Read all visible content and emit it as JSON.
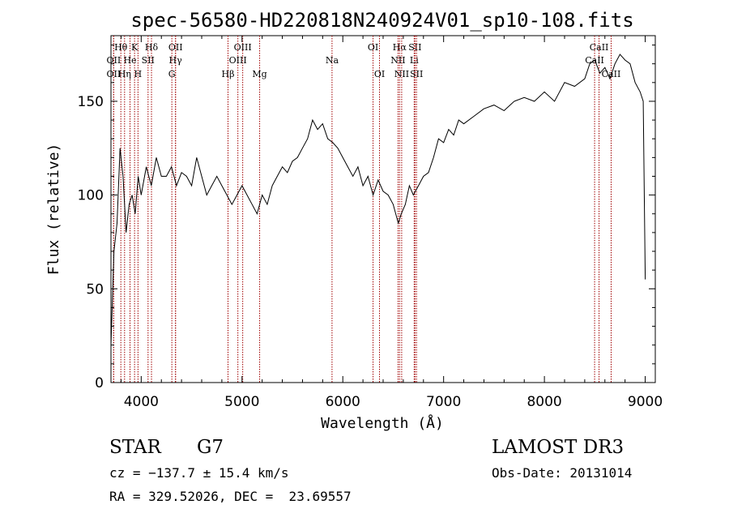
{
  "chart_data": {
    "type": "line",
    "title": "spec-56580-HD220818N240924V01_sp10-108.fits",
    "xlabel": "Wavelength (Å)",
    "ylabel": "Flux (relative)",
    "xlim": [
      3700,
      9100
    ],
    "ylim": [
      0,
      185
    ],
    "xticks": [
      4000,
      5000,
      6000,
      7000,
      8000,
      9000
    ],
    "yticks": [
      0,
      50,
      100,
      150
    ],
    "grid": false,
    "series": [
      {
        "name": "flux",
        "x": [
          3700,
          3730,
          3760,
          3790,
          3820,
          3850,
          3880,
          3910,
          3940,
          3970,
          4000,
          4050,
          4100,
          4150,
          4200,
          4250,
          4300,
          4350,
          4400,
          4450,
          4500,
          4550,
          4600,
          4650,
          4700,
          4750,
          4800,
          4850,
          4900,
          4950,
          5000,
          5050,
          5100,
          5150,
          5200,
          5250,
          5300,
          5350,
          5400,
          5450,
          5500,
          5550,
          5600,
          5650,
          5700,
          5750,
          5800,
          5850,
          5900,
          5950,
          6000,
          6050,
          6100,
          6150,
          6200,
          6250,
          6300,
          6350,
          6400,
          6450,
          6500,
          6550,
          6580,
          6620,
          6660,
          6700,
          6750,
          6800,
          6850,
          6900,
          6950,
          7000,
          7050,
          7100,
          7150,
          7200,
          7300,
          7400,
          7500,
          7600,
          7700,
          7800,
          7900,
          8000,
          8100,
          8200,
          8300,
          8400,
          8450,
          8500,
          8550,
          8600,
          8650,
          8700,
          8750,
          8800,
          8850,
          8900,
          8950,
          8980,
          9000
        ],
        "y": [
          20,
          70,
          85,
          125,
          110,
          80,
          95,
          100,
          90,
          110,
          100,
          115,
          105,
          120,
          110,
          110,
          115,
          105,
          112,
          110,
          105,
          120,
          110,
          100,
          105,
          110,
          105,
          100,
          95,
          100,
          105,
          100,
          95,
          90,
          100,
          95,
          105,
          110,
          115,
          112,
          118,
          120,
          125,
          130,
          140,
          135,
          138,
          130,
          128,
          125,
          120,
          115,
          110,
          115,
          105,
          110,
          100,
          108,
          102,
          100,
          95,
          85,
          90,
          95,
          105,
          100,
          105,
          110,
          112,
          120,
          130,
          128,
          135,
          132,
          140,
          138,
          142,
          146,
          148,
          145,
          150,
          152,
          150,
          155,
          150,
          160,
          158,
          162,
          170,
          172,
          165,
          168,
          162,
          170,
          175,
          172,
          170,
          160,
          155,
          150,
          55
        ]
      }
    ],
    "line_markers": [
      {
        "label": "Hθ",
        "x": 3798,
        "row": 1
      },
      {
        "label": "K",
        "x": 3934,
        "row": 1
      },
      {
        "label": "Hδ",
        "x": 4102,
        "row": 1
      },
      {
        "label": "OII",
        "x": 4341,
        "row": 1
      },
      {
        "label": "OIII",
        "x": 5007,
        "row": 1
      },
      {
        "label": "OI",
        "x": 6300,
        "row": 1
      },
      {
        "label": "Hα",
        "x": 6563,
        "row": 1
      },
      {
        "label": "SII",
        "x": 6716,
        "row": 1
      },
      {
        "label": "CaII",
        "x": 8542,
        "row": 1
      },
      {
        "label": "OII",
        "x": 3727,
        "row": 2
      },
      {
        "label": "He",
        "x": 3889,
        "row": 2
      },
      {
        "label": "SII",
        "x": 4068,
        "row": 2
      },
      {
        "label": "Hγ",
        "x": 4340,
        "row": 2
      },
      {
        "label": "OIII",
        "x": 4959,
        "row": 2
      },
      {
        "label": "Na",
        "x": 5893,
        "row": 2
      },
      {
        "label": "NII",
        "x": 6548,
        "row": 2
      },
      {
        "label": "Li",
        "x": 6708,
        "row": 2
      },
      {
        "label": "CaII",
        "x": 8498,
        "row": 2
      },
      {
        "label": "OII",
        "x": 3727,
        "row": 3
      },
      {
        "label": "Hη",
        "x": 3835,
        "row": 3
      },
      {
        "label": "H",
        "x": 3968,
        "row": 3
      },
      {
        "label": "G",
        "x": 4304,
        "row": 3
      },
      {
        "label": "Hβ",
        "x": 4861,
        "row": 3
      },
      {
        "label": "Mg",
        "x": 5175,
        "row": 3
      },
      {
        "label": "OI",
        "x": 6364,
        "row": 3
      },
      {
        "label": "NII",
        "x": 6584,
        "row": 3
      },
      {
        "label": "SII",
        "x": 6731,
        "row": 3
      },
      {
        "label": "CaII",
        "x": 8662,
        "row": 3
      }
    ],
    "line_marker_color": "#a00000"
  },
  "info": {
    "class": "STAR",
    "subclass": "G7",
    "survey": "LAMOST DR3",
    "cz": "cz = −137.7 ± 15.4 km/s",
    "obs_date": "Obs-Date: 20131014",
    "coords": "RA = 329.52026, DEC =  23.69557"
  }
}
